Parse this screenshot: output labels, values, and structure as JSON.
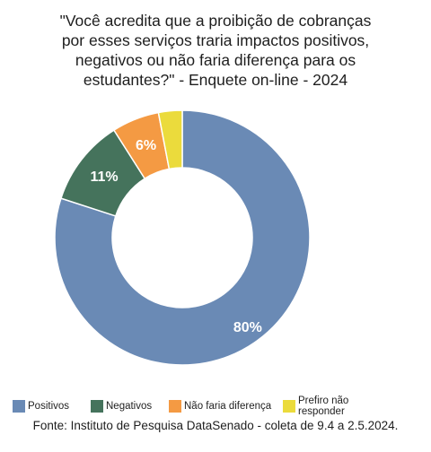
{
  "chart_data": {
    "type": "pie",
    "title": [
      "\"Você acredita que a proibição de cobranças",
      "por esses serviços traria impactos positivos,",
      "negativos ou não faria diferença para os",
      "estudantes?\" - Enquete on-line - 2024"
    ],
    "categories": [
      "Positivos",
      "Negativos",
      "Não faria diferença",
      "Prefiro não responder"
    ],
    "values": [
      80,
      11,
      6,
      3
    ],
    "data_labels": [
      "80%",
      "11%",
      "6%",
      ""
    ],
    "colors": [
      "#6a8ab5",
      "#45735c",
      "#f49a43",
      "#ebdb3c"
    ],
    "legend_position": "bottom",
    "source": "Fonte: Instituto de Pesquisa DataSenado - coleta de 9.4 a 2.5.2024."
  }
}
